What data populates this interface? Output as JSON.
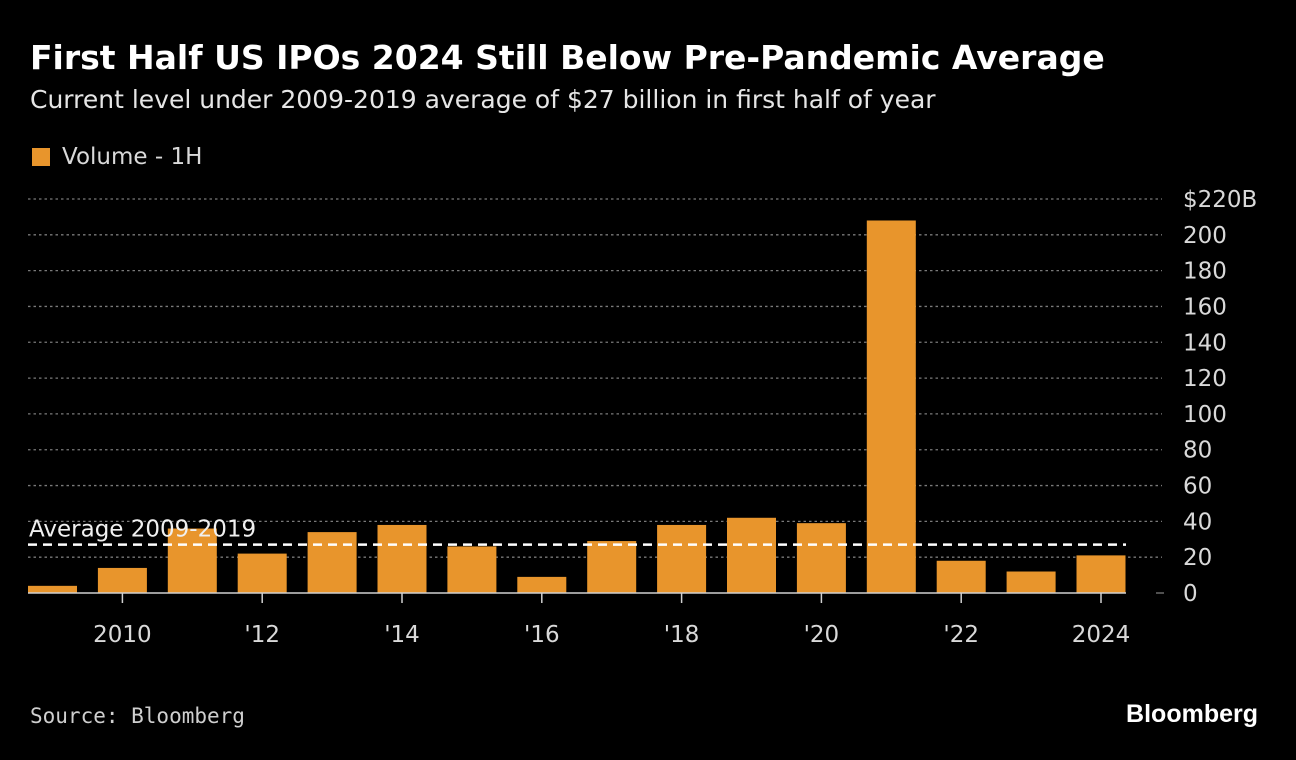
{
  "title": "First Half US IPOs 2024 Still Below Pre-Pandemic Average",
  "subtitle": "Current level under 2009-2019 average of $27 billion in first half of year",
  "source": "Source: Bloomberg",
  "brand": "Bloomberg",
  "colors": {
    "bar": "#e8952c",
    "background": "#000000",
    "grid": "#7a7a7a",
    "axis_text": "#d9d9d9",
    "reference_line": "#ffffff"
  },
  "chart_data": {
    "type": "bar",
    "legend": {
      "placement": "top-left",
      "entries": [
        "Volume - 1H"
      ]
    },
    "series": [
      {
        "name": "Volume - 1H",
        "x": [
          2009,
          2010,
          2011,
          2012,
          2013,
          2014,
          2015,
          2016,
          2017,
          2018,
          2019,
          2020,
          2021,
          2022,
          2023,
          2024
        ],
        "values": [
          4,
          14,
          36,
          22,
          34,
          38,
          26,
          9,
          29,
          38,
          42,
          39,
          208,
          18,
          12,
          21
        ]
      }
    ],
    "ylim": [
      0,
      220
    ],
    "y_ticks": [
      0,
      20,
      40,
      60,
      80,
      100,
      120,
      140,
      160,
      180,
      200,
      220
    ],
    "y_tick_labels": [
      "0",
      "20",
      "40",
      "60",
      "80",
      "100",
      "120",
      "140",
      "160",
      "180",
      "200",
      "$220B"
    ],
    "y_axis_position": "right",
    "x_ticks": [
      2010,
      2012,
      2014,
      2016,
      2018,
      2020,
      2022,
      2024
    ],
    "x_tick_labels": [
      "2010",
      "'12",
      "'14",
      "'16",
      "'18",
      "'20",
      "'22",
      "2024"
    ],
    "grid": true,
    "reference_line": {
      "value": 27,
      "label": "Average 2009-2019"
    }
  }
}
